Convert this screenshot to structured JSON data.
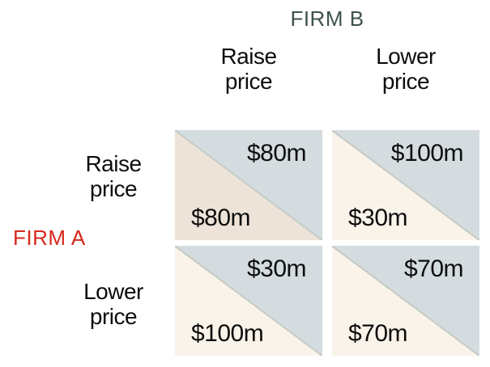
{
  "matrix": {
    "firm_b_label": "FIRM B",
    "firm_a_label": "FIRM A",
    "col_headers": [
      "Raise\nprice",
      "Lower\nprice"
    ],
    "row_headers": [
      "Raise\nprice",
      "Lower\nprice"
    ],
    "cells": [
      {
        "firm_a_strategy": "Raise price",
        "firm_b_strategy": "Raise price",
        "firm_b_payoff": "$80m",
        "firm_a_payoff": "$80m"
      },
      {
        "firm_a_strategy": "Raise price",
        "firm_b_strategy": "Lower price",
        "firm_b_payoff": "$100m",
        "firm_a_payoff": "$30m"
      },
      {
        "firm_a_strategy": "Lower price",
        "firm_b_strategy": "Raise price",
        "firm_b_payoff": "$30m",
        "firm_a_payoff": "$100m"
      },
      {
        "firm_a_strategy": "Lower price",
        "firm_b_strategy": "Lower price",
        "firm_b_payoff": "$70m",
        "firm_a_payoff": "$70m"
      }
    ]
  },
  "colors": {
    "firm-b-color": "#3e5248",
    "firm-a-color": "#d7281d",
    "firm-b-triangle": "#d4dce0",
    "firm-a-triangle": "#f9f3e9",
    "firm-a-triangle-highlight": "#eee3d8",
    "diagonal-line": "#c8ccc8"
  }
}
